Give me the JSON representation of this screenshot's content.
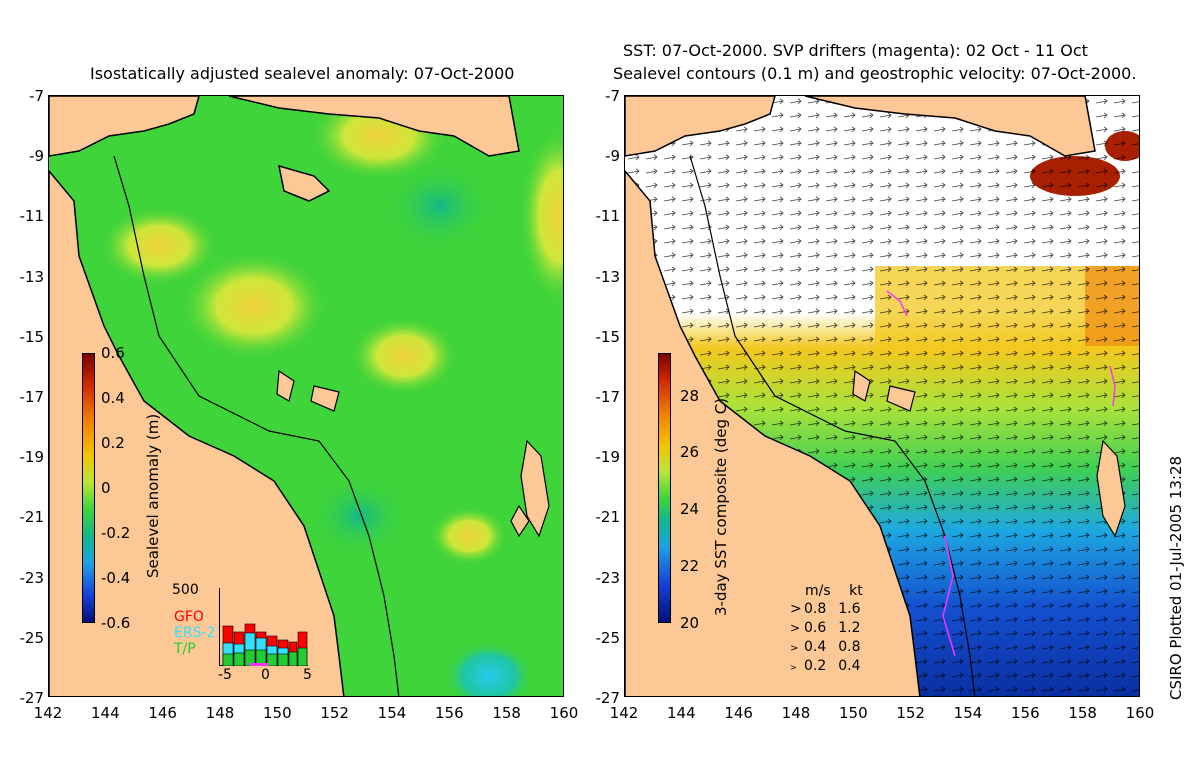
{
  "left": {
    "title": "Isostatically adjusted sealevel anomaly: 07-Oct-2000",
    "colorbar_label": "Sealevel anomaly (m)",
    "colorbar_ticks": [
      "0.6",
      "0.4",
      "0.2",
      "0",
      "-0.2",
      "-0.4",
      "-0.6"
    ],
    "histogram": {
      "max_label": "500",
      "legend": [
        {
          "name": "GFO",
          "color": "#ff0000"
        },
        {
          "name": "ERS-2",
          "color": "#33e0ff"
        },
        {
          "name": "T/P",
          "color": "#22cc33"
        }
      ],
      "x_ticks": [
        "-5",
        "0",
        "5"
      ]
    }
  },
  "right": {
    "title_line1": "SST: 07-Oct-2000. SVP drifters (magenta): 02 Oct - 11 Oct",
    "title_line2": "Sealevel contours (0.1 m) and geostrophic velocity: 07-Oct-2000.",
    "colorbar_label": "3-day SST composite (deg C)",
    "colorbar_ticks": [
      "28",
      "26",
      "24",
      "22",
      "20"
    ],
    "scale": {
      "header_ms": "m/s",
      "header_kt": "kt",
      "rows": [
        {
          "ms": "0.8",
          "kt": "1.6"
        },
        {
          "ms": "0.6",
          "kt": "1.2"
        },
        {
          "ms": "0.4",
          "kt": "0.8"
        },
        {
          "ms": "0.2",
          "kt": "0.4"
        }
      ]
    }
  },
  "axes": {
    "y_ticks": [
      "-7",
      "-9",
      "-11",
      "-13",
      "-15",
      "-17",
      "-19",
      "-21",
      "-23",
      "-25",
      "-27"
    ],
    "x_ticks": [
      "142",
      "144",
      "146",
      "148",
      "150",
      "152",
      "154",
      "156",
      "158",
      "160"
    ]
  },
  "credit": "CSIRO Plotted 01-Jul-2005 13:28",
  "colors": {
    "land": "#fbc896",
    "sea_base": "#3fd43a",
    "sst_cold": "#0a3fc8",
    "sst_warm": "#f2c81e"
  }
}
